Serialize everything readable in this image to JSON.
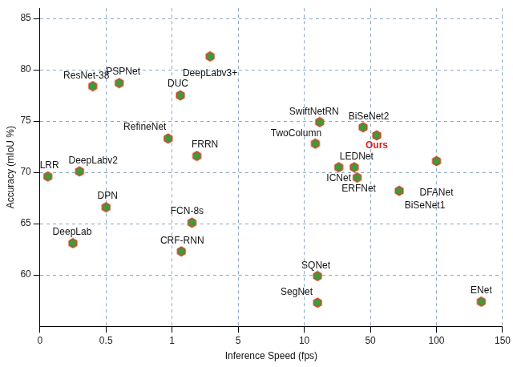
{
  "chart_data": {
    "type": "scatter",
    "x_label": "Inference Speed (fps)",
    "y_label": "Accuracy (mIoU %)",
    "point_labels": [
      "DeepLabv3+",
      "ResNet-38",
      "PSPNet",
      "DUC",
      "RefineNet",
      "FRRN",
      "LRR",
      "DeepLabv2",
      "DPN",
      "DeepLab",
      "FCN-8s",
      "CRF-RNN",
      "SwiftNetRN",
      "BiSeNet2",
      "TwoColumn",
      "Ours",
      "LEDNet",
      "ICNet",
      "ERFNet",
      "DFANet",
      "BiSeNet1",
      "SQNet",
      "SegNet",
      "ENet"
    ],
    "x": [
      3.3,
      0.4,
      0.6,
      1.5,
      0.97,
      2.5,
      0.06,
      0.3,
      0.5,
      0.25,
      2.2,
      1.56,
      19.3,
      45.6,
      16.7,
      54.8,
      40.2,
      30.9,
      42,
      100,
      71.8,
      18,
      18,
      133.9
    ],
    "values": [
      81.3,
      78.4,
      78.7,
      77.5,
      73.3,
      71.6,
      69.6,
      70.1,
      66.6,
      63.1,
      65.1,
      62.3,
      74.9,
      74.4,
      72.8,
      73.6,
      70.5,
      70.5,
      69.5,
      71.1,
      68.2,
      59.9,
      57.3,
      57.4
    ],
    "color": "#3d9b3d",
    "marker": "hexagon",
    "xlim": [
      0,
      150
    ],
    "xticks": [
      0,
      0.5,
      1,
      5,
      10,
      50,
      100,
      150
    ],
    "ylim": [
      55,
      86
    ],
    "yticks": [
      60,
      65,
      70,
      75,
      80,
      85
    ],
    "grid": true
  }
}
